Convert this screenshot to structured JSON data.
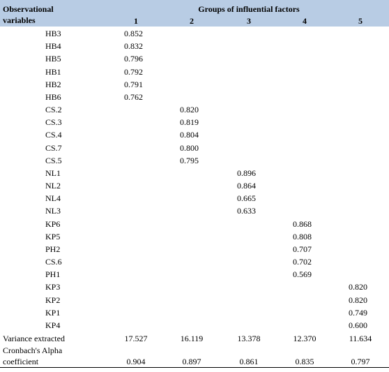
{
  "table": {
    "header": {
      "variables_label": "Observational variables",
      "group_title": "Groups of influential factors",
      "columns": [
        "1",
        "2",
        "3",
        "4",
        "5"
      ]
    },
    "groups": [
      {
        "items": [
          {
            "label": "HB3",
            "loading": "0.852"
          },
          {
            "label": "HB4",
            "loading": "0.832"
          },
          {
            "label": "HB5",
            "loading": "0.796"
          },
          {
            "label": "HB1",
            "loading": "0.792"
          },
          {
            "label": "HB2",
            "loading": "0.791"
          },
          {
            "label": "HB6",
            "loading": "0.762"
          }
        ]
      },
      {
        "items": [
          {
            "label": "CS.2",
            "loading": "0.820"
          },
          {
            "label": "CS.3",
            "loading": "0.819"
          },
          {
            "label": "CS.4",
            "loading": "0.804"
          },
          {
            "label": "CS.7",
            "loading": "0.800"
          },
          {
            "label": "CS.5",
            "loading": "0.795"
          }
        ]
      },
      {
        "items": [
          {
            "label": "NL1",
            "loading": "0.896"
          },
          {
            "label": "NL2",
            "loading": "0.864"
          },
          {
            "label": "NL4",
            "loading": "0.665"
          },
          {
            "label": "NL3",
            "loading": "0.633"
          }
        ]
      },
      {
        "items": [
          {
            "label": "KP6",
            "loading": "0.868"
          },
          {
            "label": "KP5",
            "loading": "0.808"
          },
          {
            "label": "PH2",
            "loading": "0.707"
          },
          {
            "label": "CS.6",
            "loading": "0.702"
          },
          {
            "label": "PH1",
            "loading": "0.569"
          }
        ]
      },
      {
        "items": [
          {
            "label": "KP3",
            "loading": "0.820"
          },
          {
            "label": "KP2",
            "loading": "0.820"
          },
          {
            "label": "KP1",
            "loading": "0.749"
          },
          {
            "label": "KP4",
            "loading": "0.600"
          }
        ]
      }
    ],
    "footer": [
      {
        "label": "Variance extracted",
        "values": [
          "17.527",
          "16.119",
          "13.378",
          "12.370",
          "11.634"
        ]
      },
      {
        "label": "Cronbach's Alpha coefficient",
        "values": [
          "0.904",
          "0.897",
          "0.861",
          "0.835",
          "0.797"
        ]
      }
    ]
  }
}
